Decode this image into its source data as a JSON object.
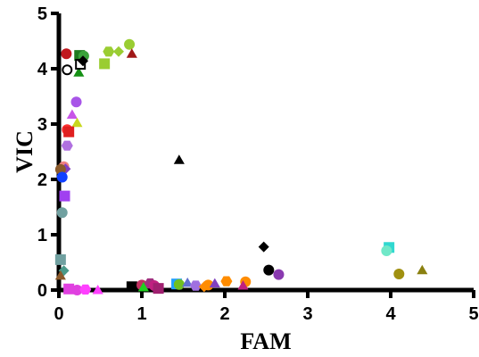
{
  "chart_data": {
    "type": "scatter",
    "title": "",
    "xlabel": "FAM",
    "ylabel": "VIC",
    "xlim": [
      0,
      5
    ],
    "ylim": [
      0,
      5
    ],
    "xticks": [
      "0",
      "1",
      "2",
      "3",
      "4",
      "5"
    ],
    "yticks": [
      "0",
      "1",
      "2",
      "3",
      "4",
      "5"
    ],
    "grid": false,
    "legend": "none",
    "points": [
      {
        "x": 0.09,
        "y": 4.27,
        "shape": "circle",
        "color": "#c0181e"
      },
      {
        "x": 0.25,
        "y": 4.24,
        "shape": "square",
        "color": "#1f7a1f"
      },
      {
        "x": 0.3,
        "y": 4.23,
        "shape": "circle",
        "color": "#3aa33a"
      },
      {
        "x": 0.24,
        "y": 3.93,
        "shape": "triangle",
        "color": "#159015"
      },
      {
        "x": 0.26,
        "y": 4.08,
        "shape": "square-open",
        "color": "#000000"
      },
      {
        "x": 0.29,
        "y": 4.14,
        "shape": "diamond",
        "color": "#000000"
      },
      {
        "x": 0.1,
        "y": 3.98,
        "shape": "circle-open",
        "color": "#000000"
      },
      {
        "x": 0.55,
        "y": 4.09,
        "shape": "square",
        "color": "#9acd32"
      },
      {
        "x": 0.6,
        "y": 4.31,
        "shape": "hexagon",
        "color": "#9acd32"
      },
      {
        "x": 0.72,
        "y": 4.31,
        "shape": "diamond",
        "color": "#9acd32"
      },
      {
        "x": 0.85,
        "y": 4.44,
        "shape": "circle",
        "color": "#9acd32"
      },
      {
        "x": 0.88,
        "y": 4.27,
        "shape": "triangle",
        "color": "#a01818"
      },
      {
        "x": 0.21,
        "y": 3.4,
        "shape": "circle",
        "color": "#a855e8"
      },
      {
        "x": 0.16,
        "y": 3.17,
        "shape": "triangle",
        "color": "#c855e8"
      },
      {
        "x": 0.22,
        "y": 3.02,
        "shape": "triangle",
        "color": "#c8d820"
      },
      {
        "x": 0.1,
        "y": 2.9,
        "shape": "circle",
        "color": "#ff3030"
      },
      {
        "x": 0.12,
        "y": 2.86,
        "shape": "square",
        "color": "#e02020"
      },
      {
        "x": 0.1,
        "y": 2.61,
        "shape": "hexagon",
        "color": "#b070e0"
      },
      {
        "x": 0.06,
        "y": 2.23,
        "shape": "circle",
        "color": "#f08080"
      },
      {
        "x": 0.08,
        "y": 2.19,
        "shape": "diamond",
        "color": "#8040c0"
      },
      {
        "x": 0.02,
        "y": 2.18,
        "shape": "circle",
        "color": "#8b5a2b"
      },
      {
        "x": 0.04,
        "y": 2.04,
        "shape": "circle",
        "color": "#1040ff"
      },
      {
        "x": 0.07,
        "y": 1.7,
        "shape": "square",
        "color": "#a040f0"
      },
      {
        "x": 0.04,
        "y": 1.4,
        "shape": "circle",
        "color": "#70a0a0"
      },
      {
        "x": 0.02,
        "y": 0.55,
        "shape": "square",
        "color": "#70a0a0"
      },
      {
        "x": 0.06,
        "y": 0.35,
        "shape": "diamond",
        "color": "#4a9a8a"
      },
      {
        "x": 0.02,
        "y": 0.26,
        "shape": "triangle",
        "color": "#8b5a2b"
      },
      {
        "x": 0.12,
        "y": 0.02,
        "shape": "square",
        "color": "#e040e0"
      },
      {
        "x": 0.22,
        "y": 0.0,
        "shape": "circle",
        "color": "#e040e0"
      },
      {
        "x": 0.32,
        "y": 0.01,
        "shape": "hexagon",
        "color": "#ff40ff"
      },
      {
        "x": 0.47,
        "y": 0.0,
        "shape": "triangle",
        "color": "#ff40ff"
      },
      {
        "x": 1.45,
        "y": 2.35,
        "shape": "triangle",
        "color": "#000000"
      },
      {
        "x": 2.47,
        "y": 0.78,
        "shape": "diamond",
        "color": "#000000"
      },
      {
        "x": 2.53,
        "y": 0.36,
        "shape": "circle",
        "color": "#000000"
      },
      {
        "x": 2.65,
        "y": 0.28,
        "shape": "circle",
        "color": "#8a3ab0"
      },
      {
        "x": 3.98,
        "y": 0.77,
        "shape": "square",
        "color": "#30d8d0"
      },
      {
        "x": 3.95,
        "y": 0.71,
        "shape": "circle",
        "color": "#70e8c8"
      },
      {
        "x": 4.1,
        "y": 0.29,
        "shape": "circle",
        "color": "#a09010"
      },
      {
        "x": 4.38,
        "y": 0.36,
        "shape": "triangle",
        "color": "#8a8010"
      },
      {
        "x": 0.88,
        "y": 0.06,
        "shape": "square",
        "color": "#000000"
      },
      {
        "x": 1.0,
        "y": 0.09,
        "shape": "circle",
        "color": "#c03060"
      },
      {
        "x": 1.02,
        "y": 0.05,
        "shape": "triangle",
        "color": "#20d020"
      },
      {
        "x": 1.1,
        "y": 0.12,
        "shape": "hexagon",
        "color": "#a03080"
      },
      {
        "x": 1.15,
        "y": 0.08,
        "shape": "circle",
        "color": "#c02080"
      },
      {
        "x": 1.2,
        "y": 0.03,
        "shape": "square",
        "color": "#a02070"
      },
      {
        "x": 1.42,
        "y": 0.11,
        "shape": "square",
        "color": "#20a0ff"
      },
      {
        "x": 1.45,
        "y": 0.1,
        "shape": "circle",
        "color": "#70c020"
      },
      {
        "x": 1.55,
        "y": 0.13,
        "shape": "triangle",
        "color": "#6070d0"
      },
      {
        "x": 1.65,
        "y": 0.08,
        "shape": "hexagon",
        "color": "#a070e0"
      },
      {
        "x": 1.75,
        "y": 0.06,
        "shape": "diamond",
        "color": "#ff8c00"
      },
      {
        "x": 1.8,
        "y": 0.09,
        "shape": "circle",
        "color": "#ff8c00"
      },
      {
        "x": 1.88,
        "y": 0.12,
        "shape": "triangle",
        "color": "#8040c0"
      },
      {
        "x": 2.02,
        "y": 0.16,
        "shape": "hexagon",
        "color": "#ff8c00"
      },
      {
        "x": 2.25,
        "y": 0.15,
        "shape": "circle",
        "color": "#ff8c00"
      },
      {
        "x": 2.22,
        "y": 0.08,
        "shape": "triangle",
        "color": "#c02080"
      }
    ]
  }
}
